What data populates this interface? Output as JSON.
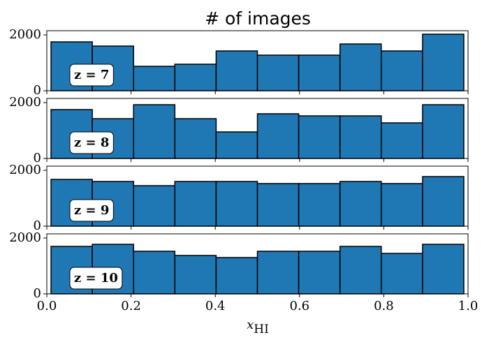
{
  "chart_data": [
    {
      "type": "histogram",
      "title": "# of images",
      "annotation": "z = 7",
      "color": "#1f77b4",
      "bins": [
        0.01,
        0.108,
        0.206,
        0.304,
        0.402,
        0.5,
        0.598,
        0.696,
        0.794,
        0.892,
        0.99
      ],
      "values": [
        1750,
        1600,
        875,
        950,
        1425,
        1275,
        1275,
        1675,
        1425,
        2025
      ],
      "xlim": [
        0,
        1
      ],
      "ylim": [
        0,
        2150
      ],
      "yticks": [
        0,
        2000
      ]
    },
    {
      "type": "histogram",
      "annotation": "z = 8",
      "color": "#1f77b4",
      "bins": [
        0.01,
        0.108,
        0.206,
        0.304,
        0.402,
        0.5,
        0.598,
        0.696,
        0.794,
        0.892,
        0.99
      ],
      "values": [
        1750,
        1425,
        1925,
        1425,
        950,
        1600,
        1525,
        1525,
        1275,
        1925
      ],
      "xlim": [
        0,
        1
      ],
      "ylim": [
        0,
        2150
      ],
      "yticks": [
        0,
        2000
      ]
    },
    {
      "type": "histogram",
      "annotation": "z = 9",
      "color": "#1f77b4",
      "bins": [
        0.01,
        0.108,
        0.206,
        0.304,
        0.402,
        0.5,
        0.598,
        0.696,
        0.794,
        0.892,
        0.99
      ],
      "values": [
        1675,
        1600,
        1450,
        1600,
        1600,
        1525,
        1525,
        1600,
        1525,
        1775
      ],
      "xlim": [
        0,
        1
      ],
      "ylim": [
        0,
        2150
      ],
      "yticks": [
        0,
        2000
      ]
    },
    {
      "type": "histogram",
      "annotation": "z = 10",
      "color": "#1f77b4",
      "bins": [
        0.01,
        0.108,
        0.206,
        0.304,
        0.402,
        0.5,
        0.598,
        0.696,
        0.794,
        0.892,
        0.99
      ],
      "values": [
        1700,
        1775,
        1525,
        1375,
        1300,
        1525,
        1525,
        1700,
        1450,
        1775
      ],
      "xlim": [
        0,
        1
      ],
      "ylim": [
        0,
        2150
      ],
      "yticks": [
        0,
        2000
      ],
      "xticks": [
        {
          "value": 0,
          "label": "0.0"
        },
        0.2,
        0.4,
        0.6,
        0.8,
        {
          "value": 1,
          "label": "1.0"
        }
      ],
      "xlabel": {
        "main": "x",
        "sub": "HI"
      }
    }
  ]
}
